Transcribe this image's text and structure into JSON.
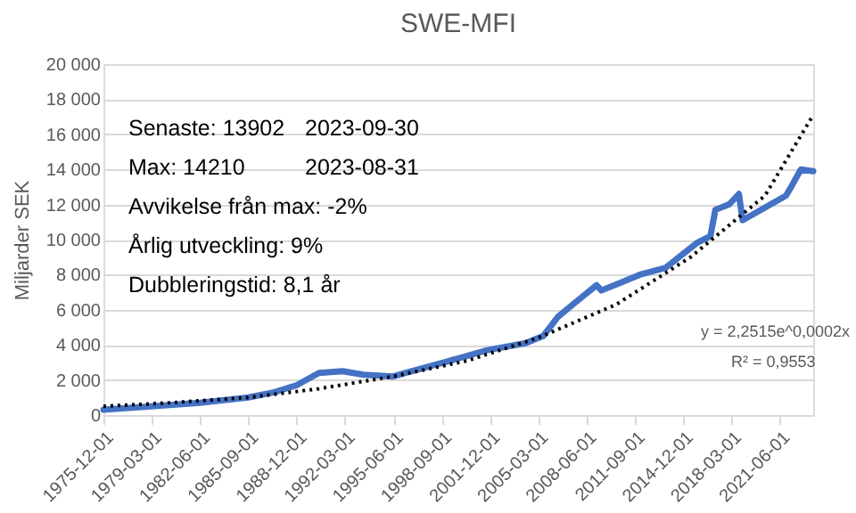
{
  "chart_data": {
    "type": "line",
    "title": "SWE-MFI",
    "ylabel": "Miljarder SEK",
    "x": [
      "1975-12",
      "1979-03",
      "1982-06",
      "1985-09",
      "1987-06",
      "1988-12",
      "1990-06",
      "1992-01",
      "1993-06",
      "1995-06",
      "1996-04",
      "1998-11",
      "2001-10",
      "2004-05",
      "2005-07",
      "2006-07",
      "2007-07",
      "2009-02",
      "2009-06",
      "2010-08",
      "2012-01",
      "2013-10",
      "2015-02",
      "2015-11",
      "2016-10",
      "2017-02",
      "2018-01",
      "2018-09",
      "2018-12",
      "2020-03",
      "2021-11",
      "2022-04",
      "2022-11",
      "2023-09"
    ],
    "series": [
      {
        "color": "#4472c4",
        "values": [
          300,
          500,
          700,
          1000,
          1300,
          1700,
          2400,
          2500,
          2300,
          2200,
          2400,
          3000,
          3700,
          4100,
          4500,
          5600,
          6300,
          7400,
          7100,
          7500,
          8000,
          8400,
          9300,
          9800,
          10200,
          11700,
          12000,
          12600,
          11100,
          11700,
          12500,
          13100,
          14000,
          13900
        ]
      },
      {
        "type": "line",
        "color": "#000000",
        "line_style": "dotted",
        "x": [
          "1975-12",
          "1980-06",
          "1985-09",
          "1990-06",
          "1995-06",
          "2000-06",
          "2005-03",
          "2010-06",
          "2015-06",
          "2020-06",
          "2023-09"
        ],
        "values": [
          500,
          700,
          1000,
          1500,
          2200,
          3100,
          4400,
          6300,
          9000,
          12500,
          17100
        ]
      }
    ],
    "xlim": [
      "1975-12",
      "2023-09"
    ],
    "xticks": [
      "1975-12-01",
      "1979-03-01",
      "1982-06-01",
      "1985-09-01",
      "1988-12-01",
      "1992-03-01",
      "1995-06-01",
      "1998-09-01",
      "2001-12-01",
      "2005-03-01",
      "2008-06-01",
      "2011-09-01",
      "2014-12-01",
      "2018-03-01",
      "2021-06-01"
    ],
    "ylim": [
      0,
      20000
    ],
    "yticks": [
      0,
      {
        "value": 2000,
        "label": "2 000"
      },
      {
        "value": 4000,
        "label": "4 000"
      },
      {
        "value": 6000,
        "label": "6 000"
      },
      {
        "value": 8000,
        "label": "8 000"
      },
      {
        "value": 10000,
        "label": "10 000"
      },
      {
        "value": 12000,
        "label": "12 000"
      },
      {
        "value": 14000,
        "label": "14 000"
      },
      {
        "value": 16000,
        "label": "16 000"
      },
      {
        "value": 18000,
        "label": "18 000"
      },
      {
        "value": 20000,
        "label": "20 000"
      }
    ],
    "annotations": [
      "Senaste: 13902",
      "2023-09-30",
      "Max: 14210",
      "2023-08-31",
      "Avvikelse från max: -2%",
      "Årlig utveckling: 9%",
      "Dubbleringstid: 8,1 år",
      "y = 2,2515e^0,0002x",
      "R² = 0,9553"
    ],
    "grid": "y",
    "marker": "none"
  }
}
